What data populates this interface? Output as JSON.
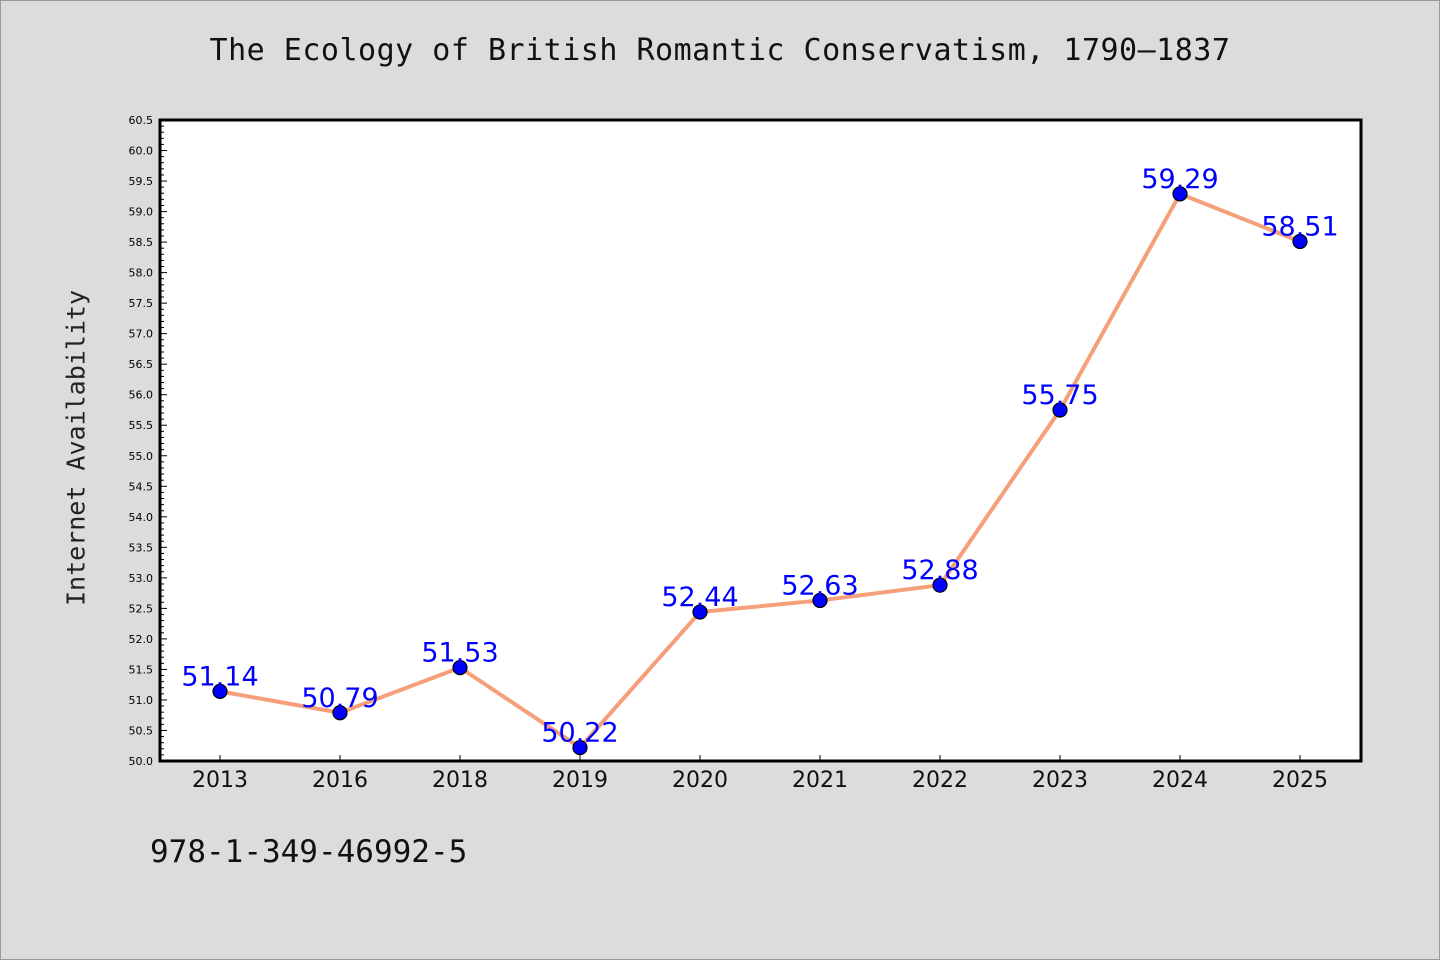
{
  "chart_data": {
    "type": "line",
    "title": "The Ecology of British Romantic Conservatism, 1790–1837",
    "xlabel": "",
    "ylabel": "Internet Availability",
    "categories": [
      "2013",
      "2016",
      "2018",
      "2019",
      "2020",
      "2021",
      "2022",
      "2023",
      "2024",
      "2025"
    ],
    "series": [
      {
        "values": [
          51.14,
          50.79,
          51.53,
          50.22,
          52.44,
          52.63,
          52.88,
          55.75,
          59.29,
          58.51
        ],
        "data_labels": [
          "51.14",
          "50.79",
          "51.53",
          "50.22",
          "52.44",
          "52.63",
          "52.88",
          "55.75",
          "59.29",
          "58.51"
        ]
      }
    ],
    "ylim": [
      50.0,
      60.5
    ],
    "yticks": [
      "50.0",
      "50.5",
      "51.0",
      "51.5",
      "52.0",
      "52.5",
      "53.0",
      "53.5",
      "54.0",
      "54.5",
      "55.0",
      "55.5",
      "56.0",
      "56.5",
      "57.0",
      "57.5",
      "58.0",
      "58.5",
      "59.0",
      "59.5",
      "60.0",
      "60.5"
    ],
    "grid": false,
    "legend": "none",
    "colors": {
      "line": "#f5a07a",
      "marker": "#0000ff",
      "data_label": "#0000ff",
      "plot_background": "#ffffff",
      "figure_background": "#dcdcdc"
    }
  },
  "footer": {
    "isbn": "978-1-349-46992-5"
  }
}
